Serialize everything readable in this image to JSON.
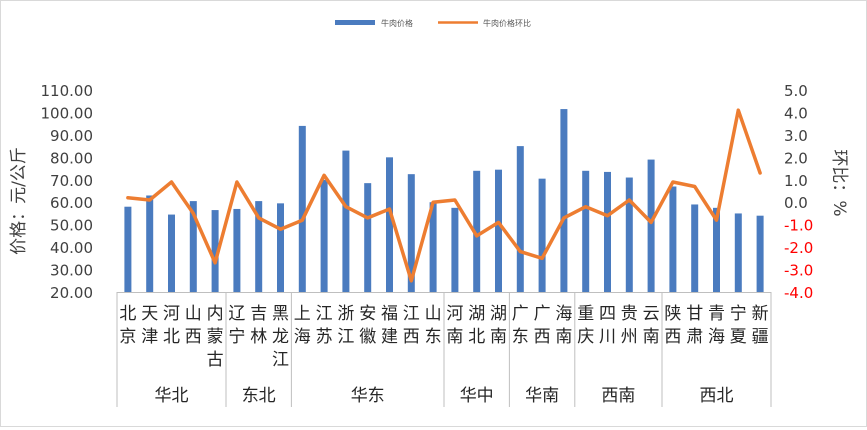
{
  "chart_data": {
    "type": "bar",
    "combo": "bar + line (secondary axis)",
    "title": "",
    "legend": {
      "position": "top",
      "entries": [
        "牛肉价格",
        "牛肉价格环比"
      ]
    },
    "series": [
      {
        "name": "牛肉价格",
        "type": "bar",
        "axis": "left",
        "color": "#4a7bbf",
        "values": [
          58,
          63,
          54.5,
          60.5,
          56.5,
          57,
          60.5,
          59.5,
          94,
          70,
          83,
          68.5,
          80,
          72.5,
          60,
          57.5,
          74,
          74.5,
          85,
          70.5,
          101.5,
          74,
          73.5,
          71,
          79,
          67,
          59,
          57.5,
          55,
          54
        ]
      },
      {
        "name": "牛肉价格环比",
        "type": "line",
        "axis": "right",
        "color": "#ed7d31",
        "values": [
          0.2,
          0.1,
          0.9,
          -0.5,
          -2.7,
          0.9,
          -0.7,
          -1.2,
          -0.8,
          1.2,
          -0.2,
          -0.7,
          -0.3,
          -3.5,
          0.0,
          0.1,
          -1.5,
          -0.9,
          -2.2,
          -2.5,
          -0.7,
          -0.2,
          -0.6,
          0.1,
          -0.9,
          0.9,
          0.7,
          -0.8,
          4.1,
          1.3
        ]
      }
    ],
    "categories": [
      "北京",
      "天津",
      "河北",
      "山西",
      "内蒙古",
      "辽宁",
      "吉林",
      "黑龙江",
      "上海",
      "江苏",
      "浙江",
      "安徽",
      "福建",
      "江西",
      "山东",
      "河南",
      "湖北",
      "湖南",
      "广东",
      "广西",
      "海南",
      "重庆",
      "四川",
      "贵州",
      "云南",
      "陕西",
      "甘肃",
      "青海",
      "宁夏",
      "新疆"
    ],
    "groups": [
      {
        "name": "华北",
        "count": 5
      },
      {
        "name": "东北",
        "count": 3
      },
      {
        "name": "华东",
        "count": 7
      },
      {
        "name": "华中",
        "count": 3
      },
      {
        "name": "华南",
        "count": 3
      },
      {
        "name": "西南",
        "count": 4
      },
      {
        "name": "西北",
        "count": 5
      }
    ],
    "y_left": {
      "label": "价格：元/公斤",
      "ylim": [
        20,
        110
      ],
      "ticks": [
        "20.00",
        "30.00",
        "40.00",
        "50.00",
        "60.00",
        "70.00",
        "80.00",
        "90.00",
        "100.00",
        "110.00"
      ]
    },
    "y_right": {
      "label": "环比：%",
      "ylim": [
        -4,
        5
      ],
      "ticks": [
        "-4.0",
        "-3.0",
        "-2.0",
        "-1.0",
        "0.0",
        "1.0",
        "2.0",
        "3.0",
        "4.0",
        "5.0"
      ],
      "negative_color": "#ff0000"
    },
    "grid": false
  }
}
